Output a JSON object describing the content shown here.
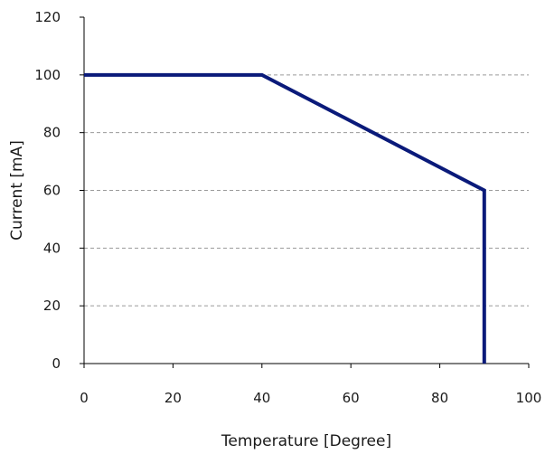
{
  "chart_data": {
    "type": "line",
    "title": "",
    "xlabel": "Temperature [Degree]",
    "ylabel": "Current [mA]",
    "xlim": [
      0,
      100
    ],
    "ylim": [
      0,
      120
    ],
    "x_ticks": [
      0,
      20,
      40,
      60,
      80,
      100
    ],
    "y_ticks": [
      0,
      20,
      40,
      60,
      80,
      100,
      120
    ],
    "x_tick_labels": [
      "0",
      "20",
      "40",
      "60",
      "80",
      "100"
    ],
    "y_tick_labels": [
      "0",
      "20",
      "40",
      "60",
      "80",
      "100",
      "120"
    ],
    "grid": "horizontal-dashed",
    "legend": "none",
    "series": [
      {
        "color": "#0a1a7a",
        "x": [
          0,
          40,
          90,
          90
        ],
        "y": [
          100,
          100,
          60,
          0
        ]
      }
    ]
  }
}
